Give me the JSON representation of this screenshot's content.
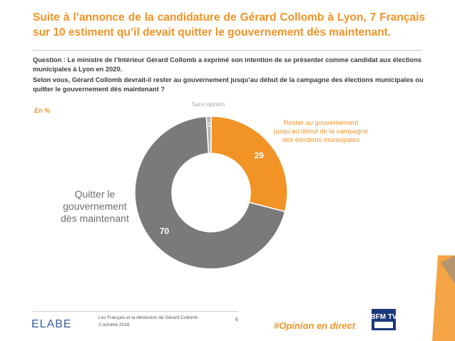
{
  "header": {
    "title": "Suite à l’annonce de la candidature de Gérard Collomb à Lyon, 7 Français sur 10 estiment qu’il devait quitter le gouvernement dès maintenant."
  },
  "question": {
    "line1": "Question : Le ministre de l’Intérieur Gérard Collomb a exprimé son intention de se présenter comme candidat aux élections municipales à Lyon en 2020.",
    "line2": "Selon vous, Gérard Collomb devrait-il rester au gouvernement jusqu’au début de la campagne des élections municipales ou quitter le gouvernement dès maintenant ?"
  },
  "unit_label": "En %",
  "chart_data": {
    "type": "pie",
    "variant": "donut",
    "categories": [
      "Rester au gouvernement jusqu’au début de la campagne des élections municipales",
      "Quitter le gouvernement dès maintenant",
      "Sans opinion"
    ],
    "values": [
      29,
      70,
      1
    ],
    "colors": [
      "#f29325",
      "#7a7a7a",
      "#b4b4b4"
    ],
    "label_lines": [
      [
        "Rester au gouvernement",
        "jusqu’au début de la campagne",
        "des élections municipales"
      ],
      [
        "Quitter le",
        "gouvernement",
        "dès maintenant"
      ],
      [
        "Sans opinion"
      ]
    ],
    "label_colors": [
      "#f29325",
      "#6f6f6f",
      "#a8a8a8"
    ]
  },
  "footer": {
    "brand": "ELABE",
    "survey_title": "Les Français et la démission de Gérard Collomb",
    "date": "3 octobre 2018",
    "page": "6",
    "hashtag": "#Opinion en direct",
    "partner_logo_text": "BFM TV"
  },
  "colors": {
    "accent": "#f29325",
    "grey_dark": "#7a7a7a",
    "grey_light": "#b4b4b4",
    "elabe_blue": "#3a5ca8",
    "bfm_blue": "#1b3a7a"
  }
}
